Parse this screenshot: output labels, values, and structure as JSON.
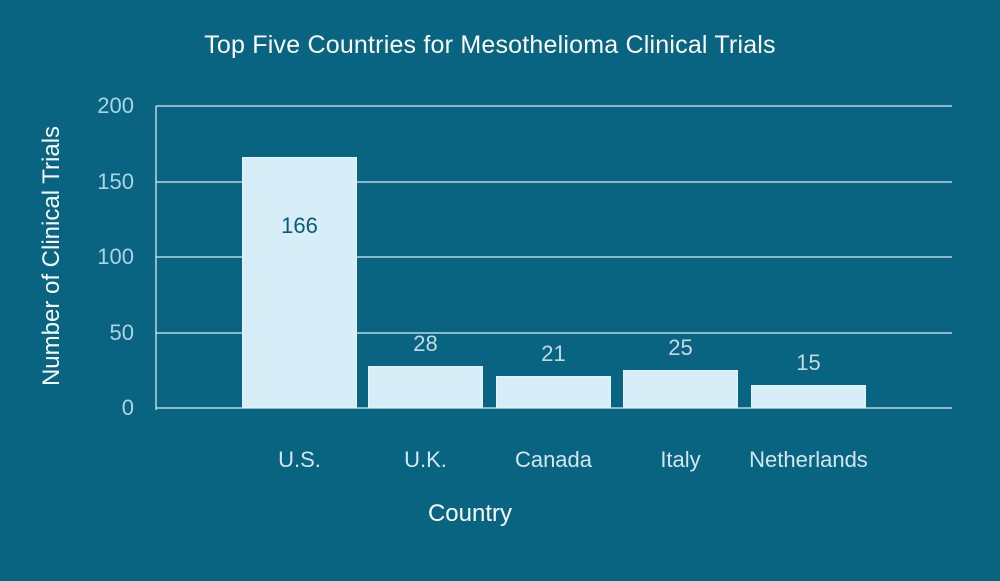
{
  "chart_data": {
    "type": "bar",
    "title": "Top Five Countries for Mesothelioma Clinical Trials",
    "xlabel": "Country",
    "ylabel": "Number of Clinical Trials",
    "categories": [
      "U.S.",
      "U.K.",
      "Canada",
      "Italy",
      "Netherlands"
    ],
    "values": [
      166,
      28,
      21,
      25,
      15
    ],
    "yticks": [
      0,
      50,
      100,
      150,
      200
    ],
    "ylim": [
      0,
      200
    ],
    "grid": "horizontal",
    "legend": "none",
    "colors": {
      "background": "#086481",
      "bar_fill": "#d7edf8",
      "value_label_inside": "#0d5a78",
      "value_label_outside": "#c6d8e2",
      "tick_label": "#aed3e6",
      "category_label": "#d3e6f0",
      "title": "#fbfdfe",
      "gridline": "#cde7f2"
    }
  }
}
